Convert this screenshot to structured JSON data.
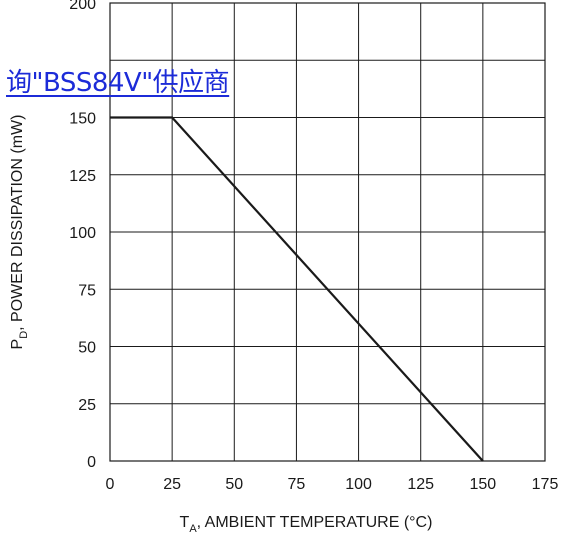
{
  "chart_data": {
    "type": "line",
    "x": [
      0,
      25,
      150
    ],
    "series": [
      {
        "values": [
          150,
          150,
          0
        ]
      }
    ],
    "xlim": [
      0,
      175
    ],
    "ylim": [
      0,
      200
    ],
    "xticks": [
      0,
      25,
      50,
      75,
      100,
      125,
      150,
      175
    ],
    "yticks": [
      0,
      25,
      50,
      75,
      100,
      125,
      150,
      200
    ],
    "xlabel_main": "T",
    "xlabel_sub": "A",
    "xlabel_rest": ", AMBIENT TEMPERATURE (°C)",
    "ylabel_main": "P",
    "ylabel_sub": "D",
    "ylabel_rest": ", POWER DISSIPATION (mW)",
    "grid": true,
    "colors": {
      "line": "#1a1a1a",
      "grid": "#1a1a1a"
    }
  },
  "overlay_link": {
    "text": "询\"BSS84V\"供应商",
    "color": "#1c2bd8"
  }
}
